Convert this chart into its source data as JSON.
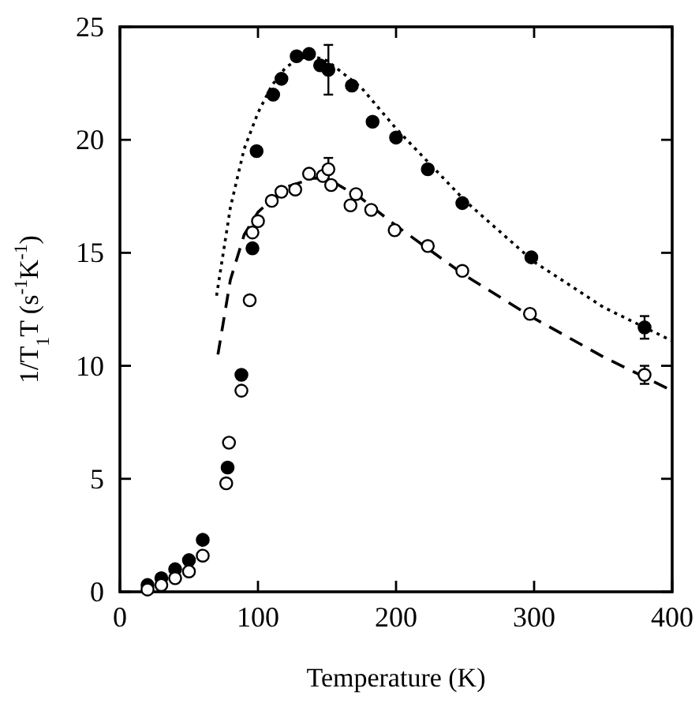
{
  "chart_data": {
    "type": "scatter",
    "xlabel": "Temperature (K)",
    "ylabel": "1/T$_{1}$T (s$^{-1}$K$^{-1}$)",
    "xlim": [
      0,
      400
    ],
    "ylim": [
      0,
      25
    ],
    "xticks": [
      0,
      100,
      200,
      300,
      400
    ],
    "yticks": [
      0,
      5,
      10,
      15,
      20,
      25
    ],
    "grid": false,
    "series": [
      {
        "type": "line",
        "line_style": "dotted",
        "color": "#000000",
        "x": [
          70,
          80,
          90,
          100,
          110,
          120,
          130,
          140,
          150,
          175,
          200,
          250,
          300,
          350,
          400
        ],
        "values": [
          13.1,
          17,
          19.6,
          21.2,
          22.4,
          23.2,
          23.6,
          23.7,
          23.5,
          22.3,
          20.5,
          17.3,
          14.6,
          12.6,
          11.1
        ]
      },
      {
        "type": "line",
        "line_style": "dashed",
        "color": "#000000",
        "x": [
          71,
          80,
          90,
          100,
          120,
          140,
          150,
          175,
          200,
          250,
          300,
          350,
          400
        ],
        "values": [
          10.5,
          13.8,
          15.8,
          16.8,
          17.9,
          18.3,
          18.3,
          17.4,
          16.2,
          14.0,
          12.1,
          10.4,
          8.9
        ]
      },
      {
        "marker": "circle",
        "color": "#000000",
        "x": [
          20,
          30,
          40,
          50,
          60,
          78,
          88,
          96,
          99,
          111,
          117,
          128,
          137,
          145,
          151,
          168,
          183,
          200,
          223,
          248,
          298,
          380
        ],
        "values": [
          0.3,
          0.6,
          1.0,
          1.4,
          2.3,
          5.5,
          9.6,
          15.2,
          19.5,
          22.0,
          22.7,
          23.7,
          23.8,
          23.3,
          23.1,
          22.4,
          20.8,
          20.1,
          18.7,
          17.2,
          14.8,
          11.7
        ],
        "errors": [
          null,
          null,
          null,
          null,
          null,
          null,
          null,
          null,
          null,
          null,
          null,
          null,
          null,
          null,
          1.1,
          null,
          null,
          null,
          null,
          null,
          null,
          0.5
        ]
      },
      {
        "marker": "circle",
        "color": "#ffffff",
        "x": [
          20,
          30,
          40,
          50,
          60,
          77,
          79,
          88,
          94,
          96,
          100,
          110,
          117,
          127,
          137,
          147,
          151,
          153,
          167,
          171,
          182,
          199,
          223,
          248,
          297,
          380
        ],
        "values": [
          0.1,
          0.3,
          0.6,
          0.9,
          1.6,
          4.8,
          6.6,
          8.9,
          12.9,
          15.9,
          16.4,
          17.3,
          17.7,
          17.8,
          18.5,
          18.4,
          18.7,
          18.0,
          17.1,
          17.6,
          16.9,
          16.0,
          15.3,
          14.2,
          12.3,
          9.6
        ],
        "errors": [
          null,
          null,
          null,
          null,
          null,
          null,
          null,
          null,
          null,
          null,
          null,
          null,
          null,
          null,
          null,
          null,
          0.5,
          null,
          null,
          null,
          null,
          null,
          null,
          null,
          null,
          0.4
        ]
      }
    ]
  }
}
